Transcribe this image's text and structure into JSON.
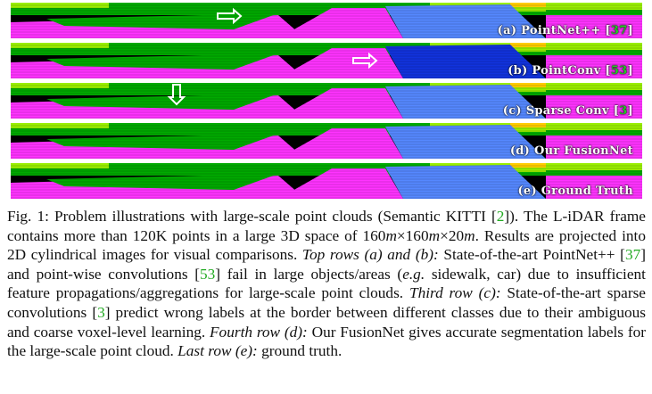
{
  "colors": {
    "road": "#ff33ff",
    "vegetation": "#00aa00",
    "terrain": "#99ee00",
    "car": "#5588ff",
    "building": "#ffcc00",
    "sky_dark": "#000000",
    "citation": "#22cc22"
  },
  "rows": [
    {
      "prefix": "(a) PointNet++ [",
      "cite": "37",
      "suffix": "]",
      "arrow": "right-arrow"
    },
    {
      "prefix": "(b) PointConv [",
      "cite": "53",
      "suffix": "]",
      "arrow": "right-arrow"
    },
    {
      "prefix": "(c) Sparse Conv [",
      "cite": "3",
      "suffix": "]",
      "arrow": "down-arrow"
    },
    {
      "prefix": "(d) Our FusionNet",
      "cite": "",
      "suffix": "",
      "arrow": ""
    },
    {
      "prefix": "(e) Ground Truth",
      "cite": "",
      "suffix": "",
      "arrow": ""
    }
  ],
  "caption": {
    "fig": "Fig. 1: Problem illustrations with large-scale point clouds (Semantic KITTI [",
    "cite_kitti": "2",
    "p1": "]). The L-iDAR frame contains more than 120K points in a large 3D space of 160",
    "m1": "m",
    "x1": "×160",
    "m2": "m",
    "x2": "×20",
    "m3": "m",
    "p2": ". Results are projected into 2D cylindrical images for visual comparisons. ",
    "top_rows": "Top rows (a) and (b):",
    "p3": " State-of-the-art PointNet++ [",
    "cite_37": "37",
    "p4": "] and point-wise convolutions [",
    "cite_53": "53",
    "p5": "] fail in large objects/areas (",
    "eg": "e.g.",
    "p6": " sidewalk, car) due to insufficient feature propagations/aggregations for large-scale point clouds. ",
    "third_row": "Third row (c):",
    "p7": " State-of-the-art sparse convolutions [",
    "cite_3": "3",
    "p8": "] predict wrong labels at the border between different classes due to their ambiguous and coarse voxel-level learning. ",
    "fourth_row": "Fourth row (d):",
    "p9": " Our FusionNet gives accurate segmentation labels for the large-scale point cloud. ",
    "last_row": "Last row (e):",
    "p10": " ground truth."
  }
}
